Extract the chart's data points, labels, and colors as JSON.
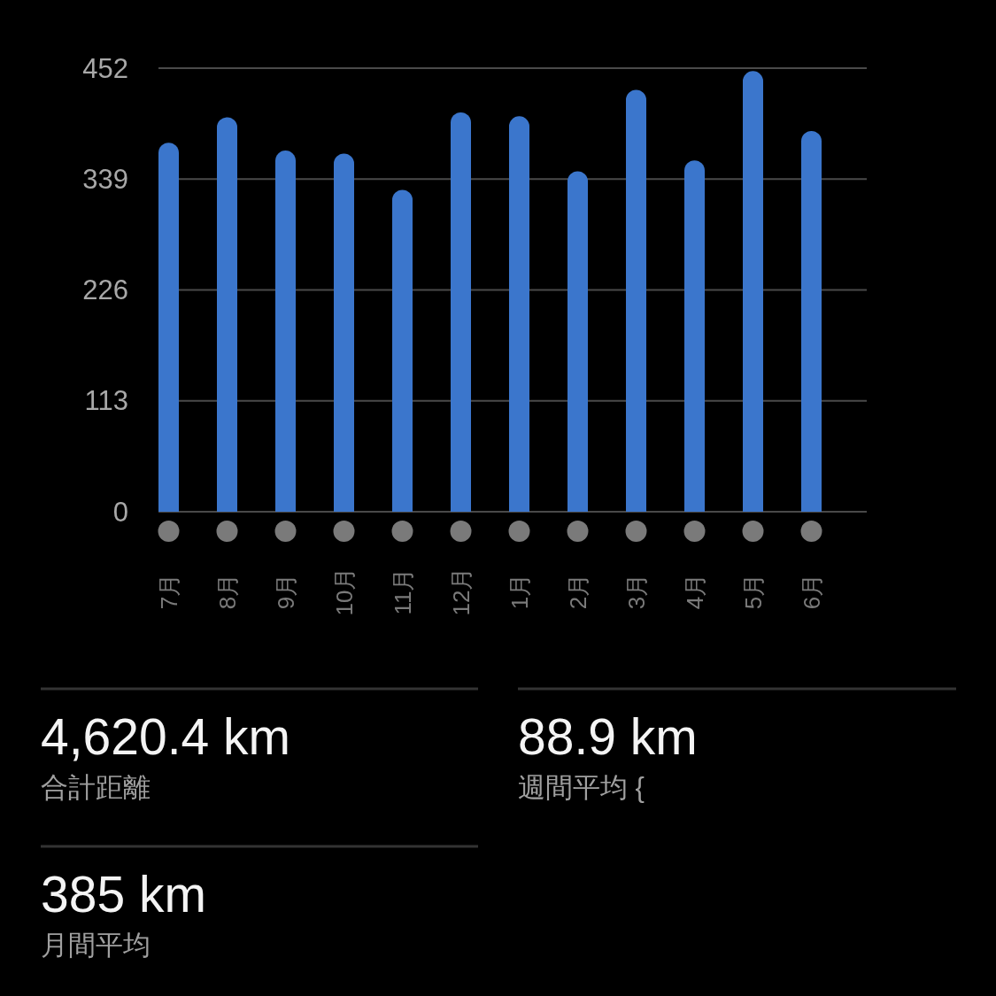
{
  "chart_data": [
    {
      "type": "bar",
      "categories": [
        "7月",
        "8月",
        "9月",
        "10月",
        "11月",
        "12月",
        "1月",
        "2月",
        "3月",
        "4月",
        "5月",
        "6月"
      ],
      "values": [
        376,
        402,
        368,
        365,
        328,
        407,
        403,
        347,
        430,
        358,
        449,
        388
      ],
      "color": "#3b76cc",
      "ylim": [
        0,
        452
      ],
      "yticks": [
        0,
        113,
        226,
        339,
        452
      ],
      "grid": "y"
    },
    {
      "type": "other",
      "annotations": [
        "4,620.4 km",
        "合計距離",
        "88.9 km",
        "週間平均 {",
        "385 km",
        "月間平均"
      ]
    }
  ]
}
